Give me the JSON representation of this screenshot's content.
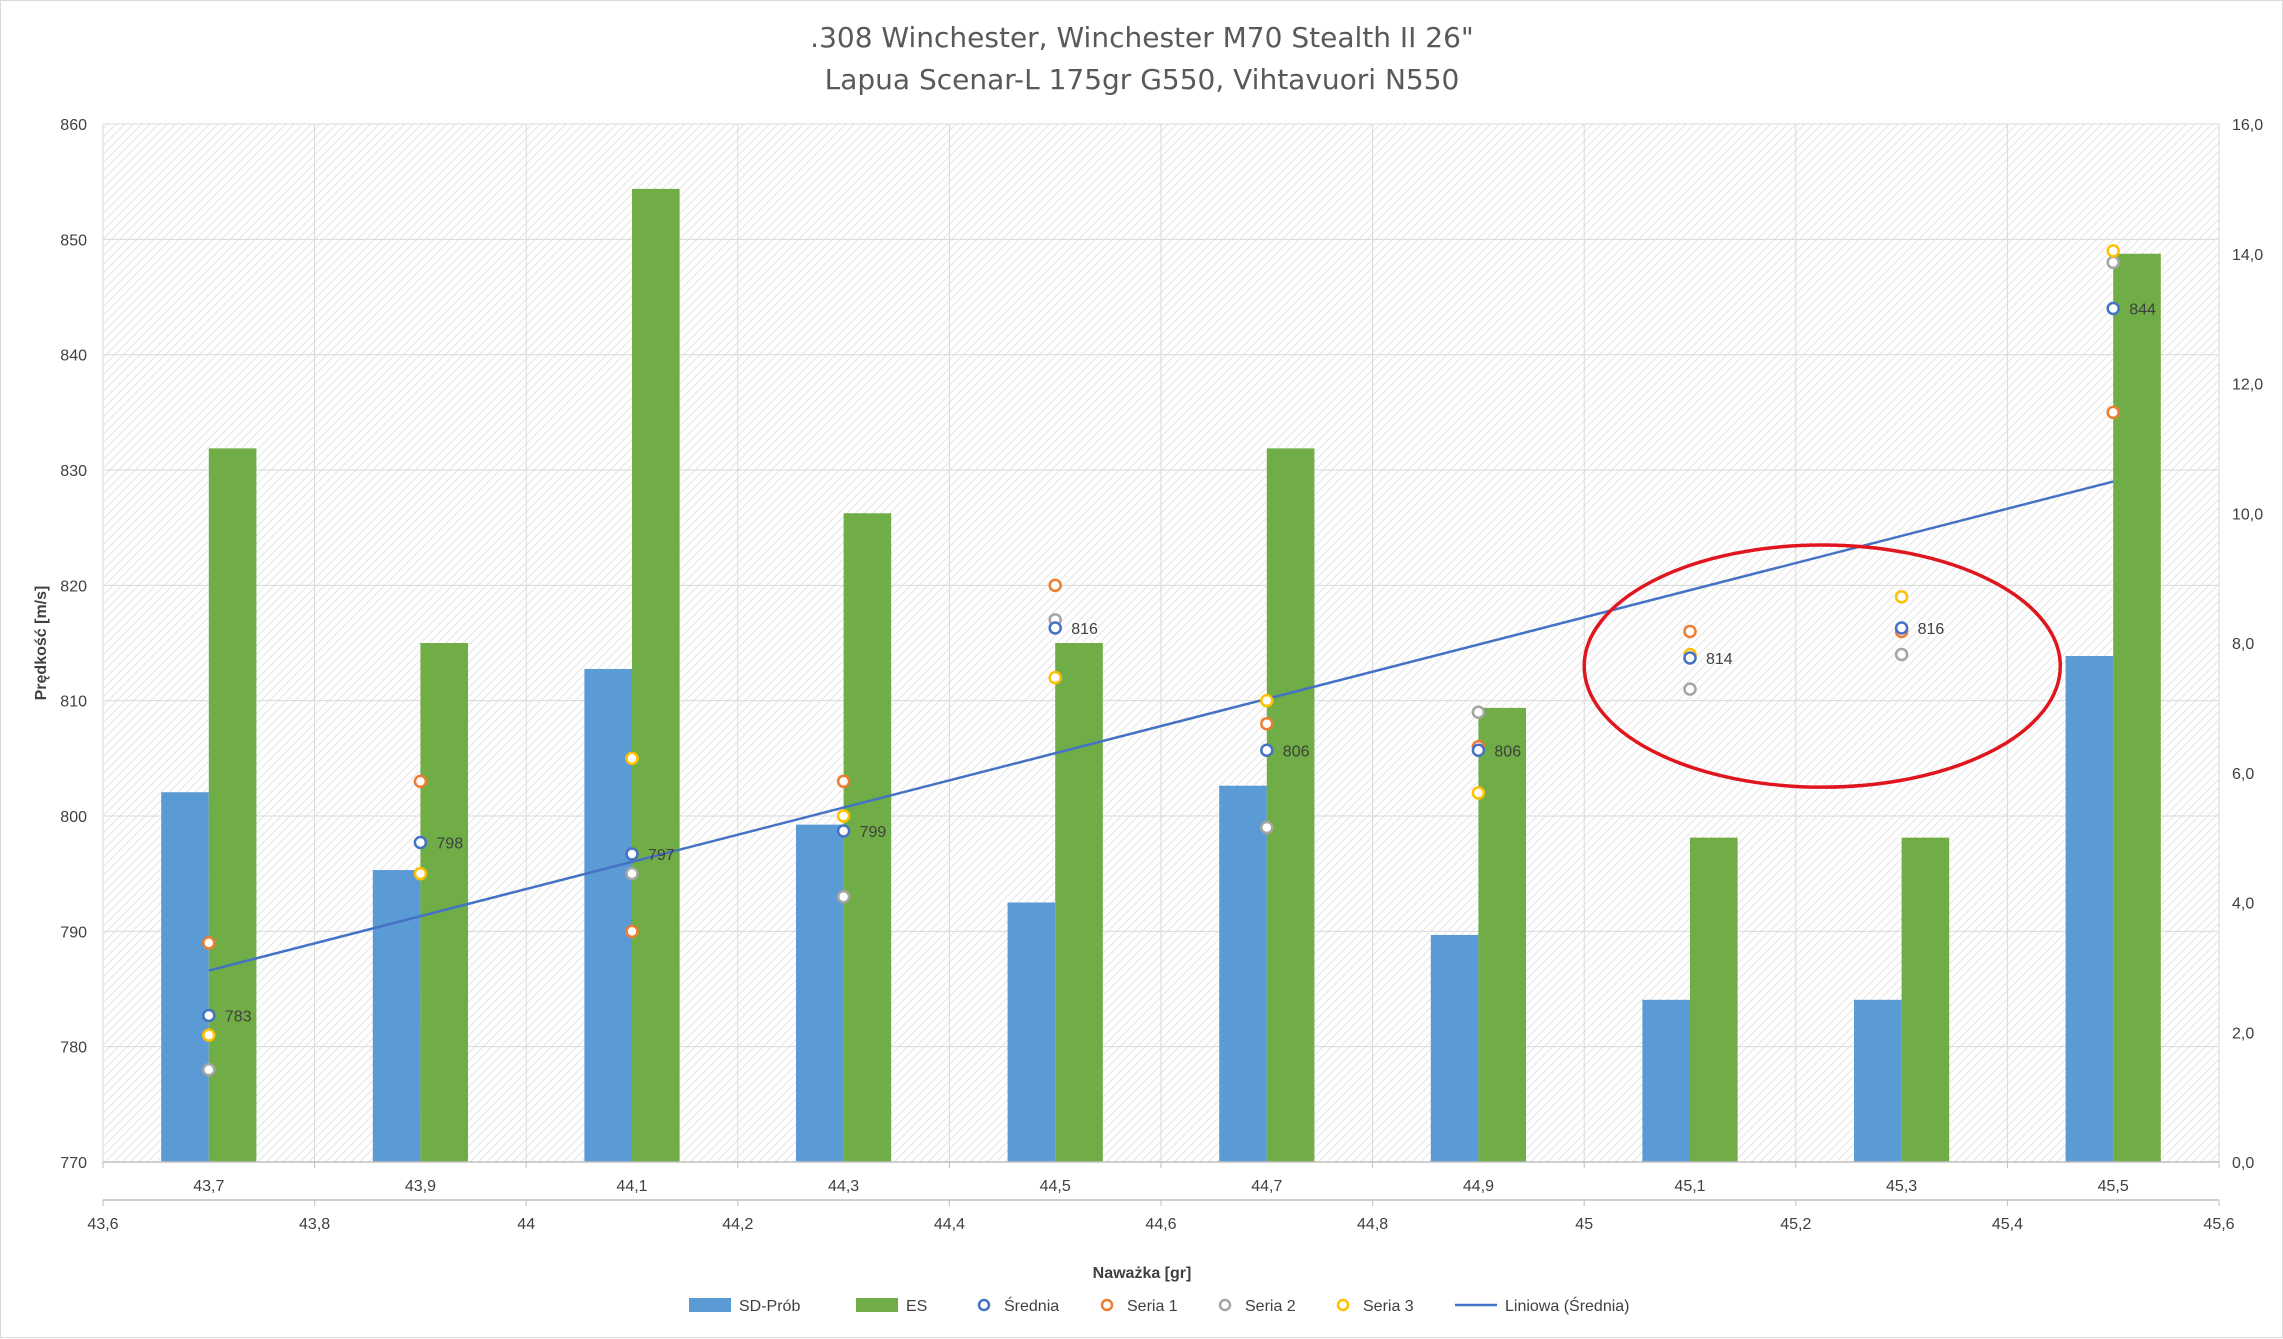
{
  "chart_data": {
    "type": "bar",
    "title": ".308 Winchester, Winchester M70 Stealth II 26\"",
    "subtitle": "Lapua Scenar-L 175gr G550, Vihtavuori N550",
    "ylabel": "Prędkość [m/s]",
    "xlabel": "Naważka [gr]",
    "categories": [
      "43,7",
      "43,9",
      "44,1",
      "44,3",
      "44,5",
      "44,7",
      "44,9",
      "45,1",
      "45,3",
      "45,5"
    ],
    "x_numeric": [
      43.7,
      43.9,
      44.1,
      44.3,
      44.5,
      44.7,
      44.9,
      45.1,
      45.3,
      45.5
    ],
    "secondary_x_ticks": [
      "43,6",
      "43,8",
      "44",
      "44,2",
      "44,4",
      "44,6",
      "44,8",
      "45",
      "45,2",
      "45,4",
      "45,6"
    ],
    "secondary_x_range": [
      43.6,
      45.6
    ],
    "ylim": [
      770,
      860
    ],
    "yticks": [
      "770",
      "780",
      "790",
      "800",
      "810",
      "820",
      "830",
      "840",
      "850",
      "860"
    ],
    "y2lim": [
      0,
      16
    ],
    "y2ticks": [
      "0,0",
      "2,0",
      "4,0",
      "6,0",
      "8,0",
      "10,0",
      "12,0",
      "14,0",
      "16,0"
    ],
    "grid": true,
    "legend_position": "bottom",
    "bar_series": [
      {
        "name": "SD-Prób",
        "color": "#5b9bd5",
        "axis": "right",
        "values": [
          5.7,
          4.5,
          7.6,
          5.2,
          4.0,
          5.8,
          3.5,
          2.5,
          2.5,
          7.8
        ]
      },
      {
        "name": "ES",
        "color": "#70ad47",
        "axis": "right",
        "values": [
          11,
          8,
          15,
          10,
          8,
          11,
          7,
          5,
          5,
          14
        ]
      }
    ],
    "point_series": [
      {
        "name": "Średnia",
        "color": "#4472c4",
        "values": [
          782.7,
          797.7,
          796.7,
          798.7,
          816.3,
          805.7,
          805.7,
          813.7,
          816.3,
          844.0
        ],
        "labels": [
          "783",
          "798",
          "797",
          "799",
          "816",
          "806",
          "806",
          "814",
          "816",
          "844"
        ]
      },
      {
        "name": "Seria 1",
        "color": "#ed7d31",
        "values": [
          789,
          803,
          790,
          803,
          820,
          808,
          806,
          816,
          816,
          835
        ]
      },
      {
        "name": "Seria 2",
        "color": "#a5a5a5",
        "values": [
          778,
          null,
          795,
          793,
          817,
          799,
          809,
          811,
          814,
          848
        ]
      },
      {
        "name": "Seria 3",
        "color": "#ffc000",
        "values": [
          781,
          795,
          805,
          800,
          812,
          810,
          802,
          814,
          819,
          849
        ]
      }
    ],
    "trendline": {
      "name": "Liniowa (Średnia)",
      "color": "#4472c4",
      "start": [
        43.7,
        786.6
      ],
      "end": [
        45.5,
        829.0
      ]
    },
    "annotation": {
      "type": "ellipse",
      "color": "#e0161e",
      "x_range": [
        45.0,
        45.45
      ],
      "y_range": [
        802.5,
        823.5
      ]
    }
  }
}
